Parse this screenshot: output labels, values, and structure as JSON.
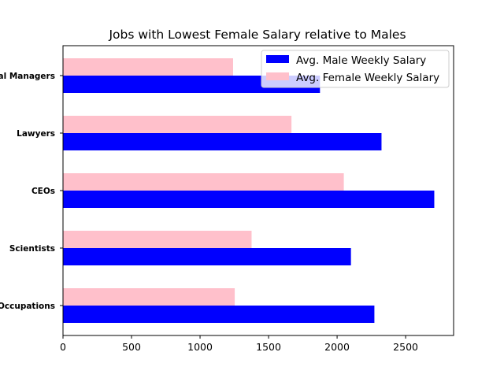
{
  "chart_data": {
    "type": "bar",
    "orientation": "horizontal",
    "title": "Jobs with Lowest Female Salary relative to Males",
    "xlabel": "",
    "ylabel": "",
    "categories": [
      "Occupations",
      "Scientists",
      "CEOs",
      "Lawyers",
      "al Managers"
    ],
    "series": [
      {
        "name": "Avg. Male Weekly Salary",
        "color": "#0000ff",
        "values": [
          2272,
          2101,
          2709,
          2324,
          1875
        ]
      },
      {
        "name": "Avg. Female Weekly Salary",
        "color": "#ffc0cb",
        "values": [
          1253,
          1376,
          2049,
          1667,
          1241
        ]
      }
    ],
    "xlim": [
      0,
      2850
    ],
    "xticks": [
      0,
      500,
      1000,
      1500,
      2000,
      2500
    ],
    "grid": false,
    "legend": "top-right"
  }
}
